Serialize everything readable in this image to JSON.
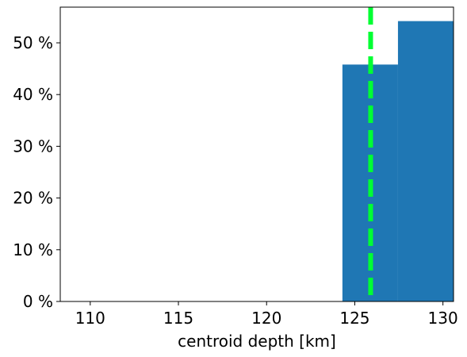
{
  "chart_data": {
    "type": "bar",
    "title": "",
    "xlabel": "centroid depth [km]",
    "ylabel": "",
    "xlim": [
      108.3,
      130.6
    ],
    "ylim": [
      0,
      56.9
    ],
    "grid": false,
    "xticks": [
      110,
      115,
      120,
      125,
      130
    ],
    "xtick_labels": [
      "110",
      "115",
      "120",
      "125",
      "130"
    ],
    "yticks": [
      0,
      10,
      20,
      30,
      40,
      50
    ],
    "ytick_labels": [
      "0 %",
      "10 %",
      "20 %",
      "30 %",
      "40 %",
      "50 %"
    ],
    "bins": [
      {
        "x_start": 124.3,
        "x_end": 127.45,
        "value": 45.8
      },
      {
        "x_start": 127.45,
        "x_end": 130.6,
        "value": 54.2
      }
    ],
    "reference_line": {
      "x": 125.9,
      "style": "dashed"
    },
    "colors": {
      "bar": "#1f77b4",
      "reference_line": "#00ff33"
    }
  }
}
